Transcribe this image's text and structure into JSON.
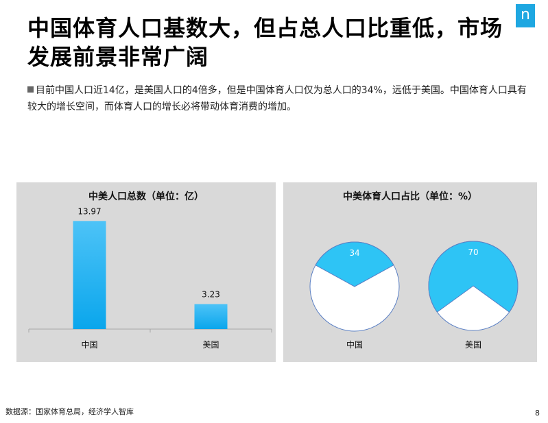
{
  "page": {
    "title": "中国体育人口基数大，但占总人口比重低，市场发展前景非常广阔",
    "logo_text": "n",
    "summary": "目前中国人口近14亿，是美国人口的4倍多，但是中国体育人口仅为总人口的34%，远低于美国。中国体育人口具有较大的增长空间，而体育人口的增长必将带动体育消费的增加。",
    "source": "数据源：国家体育总局，经济学人智库",
    "page_number": "8"
  },
  "colors": {
    "bar_top": "#4dc3f7",
    "bar_bottom": "#0aa6ec",
    "pie_fill": "#2ec4f5",
    "pie_remainder": "#ffffff",
    "pie_stroke": "#5a7fc4",
    "panel_bg": "#d9d9d9"
  },
  "chart_data": [
    {
      "type": "bar",
      "title": "中美人口总数（单位：亿）",
      "categories": [
        "中国",
        "美国"
      ],
      "values": [
        13.97,
        3.23
      ],
      "data_labels": [
        "13.97",
        "3.23"
      ],
      "ylim": [
        0,
        14
      ],
      "grid": false,
      "legend": "none"
    },
    {
      "type": "pie",
      "title": "中美体育人口占比（单位：%）",
      "pies": [
        {
          "category": "中国",
          "value": 34,
          "label": "34"
        },
        {
          "category": "美国",
          "value": 70,
          "label": "70"
        }
      ],
      "legend": "none"
    }
  ]
}
